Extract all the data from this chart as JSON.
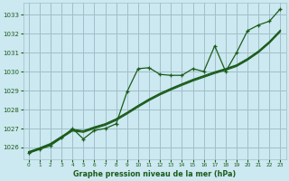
{
  "title": "Graphe pression niveau de la mer (hPa)",
  "background_color": "#cce8f0",
  "grid_color": "#a0bfc8",
  "line_color": "#1a5c1a",
  "text_color": "#1a5c1a",
  "xlim": [
    -0.5,
    23.5
  ],
  "ylim": [
    1025.4,
    1033.6
  ],
  "yticks": [
    1026,
    1027,
    1028,
    1029,
    1030,
    1031,
    1032,
    1033
  ],
  "xticks": [
    0,
    1,
    2,
    3,
    4,
    5,
    6,
    7,
    8,
    9,
    10,
    11,
    12,
    13,
    14,
    15,
    16,
    17,
    18,
    19,
    20,
    21,
    22,
    23
  ],
  "series_main": [
    1025.7,
    1025.9,
    1026.1,
    1026.5,
    1027.0,
    1026.45,
    1026.9,
    1027.0,
    1027.25,
    1028.95,
    1030.15,
    1030.2,
    1029.85,
    1029.8,
    1029.8,
    1030.15,
    1030.0,
    1031.35,
    1030.0,
    1031.0,
    1032.15,
    1032.45,
    1032.65,
    1033.3
  ],
  "series_smooth": [
    [
      1025.75,
      1025.95,
      1026.18,
      1026.55,
      1026.92,
      1026.85,
      1027.05,
      1027.22,
      1027.48,
      1027.82,
      1028.18,
      1028.52,
      1028.82,
      1029.08,
      1029.32,
      1029.55,
      1029.75,
      1029.95,
      1030.12,
      1030.32,
      1030.65,
      1031.05,
      1031.55,
      1032.15
    ],
    [
      1025.72,
      1025.93,
      1026.15,
      1026.5,
      1026.87,
      1026.8,
      1027.0,
      1027.17,
      1027.43,
      1027.77,
      1028.13,
      1028.47,
      1028.77,
      1029.03,
      1029.27,
      1029.5,
      1029.7,
      1029.9,
      1030.07,
      1030.27,
      1030.6,
      1031.0,
      1031.5,
      1032.1
    ],
    [
      1025.78,
      1025.98,
      1026.21,
      1026.58,
      1026.95,
      1026.88,
      1027.08,
      1027.25,
      1027.51,
      1027.85,
      1028.21,
      1028.55,
      1028.85,
      1029.11,
      1029.35,
      1029.58,
      1029.78,
      1029.98,
      1030.15,
      1030.35,
      1030.68,
      1031.08,
      1031.58,
      1032.18
    ]
  ]
}
